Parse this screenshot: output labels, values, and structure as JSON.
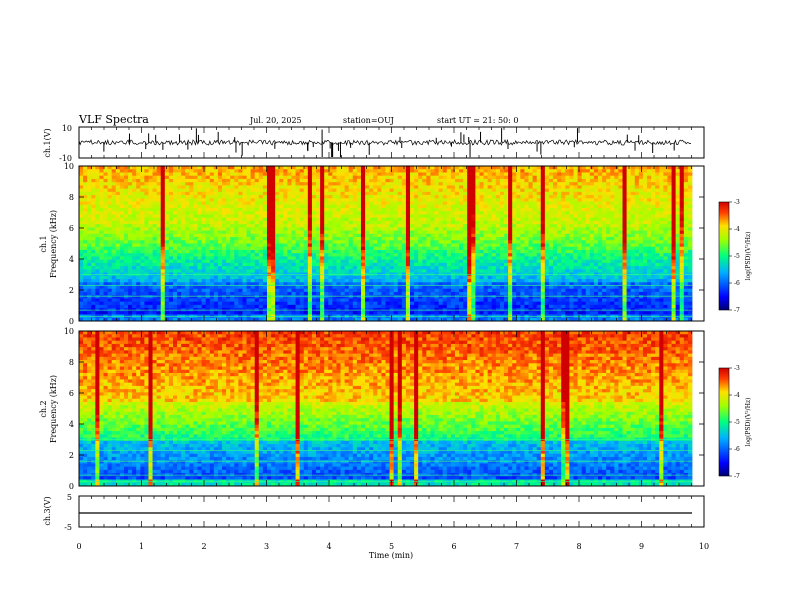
{
  "header": {
    "title": "VLF Spectra",
    "date": "Jul. 20, 2025",
    "station": "station=OUJ",
    "start": "start UT =  21: 50: 0"
  },
  "chart_data": [
    {
      "type": "line",
      "ylabel": "ch.1(V)",
      "ylim": [
        -10,
        10
      ],
      "yticks": [
        "10",
        "-10"
      ],
      "xlim": [
        0,
        10
      ]
    },
    {
      "type": "heatmap",
      "ylabel": "ch.1\nFrequency (kHz)",
      "ylim": [
        0,
        10
      ],
      "yticks": [
        "0",
        "2",
        "4",
        "6",
        "8",
        "10"
      ],
      "xlim": [
        0,
        10
      ],
      "colorbar": {
        "label": "log(PSD)(V²/Hz)",
        "range": [
          -7,
          -3
        ],
        "ticks": [
          "-3",
          "-4",
          "-5",
          "-6",
          "-7"
        ]
      }
    },
    {
      "type": "heatmap",
      "ylabel": "ch.2\nFrequency (kHz)",
      "ylim": [
        0,
        10
      ],
      "yticks": [
        "0",
        "2",
        "4",
        "6",
        "8",
        "10"
      ],
      "xlim": [
        0,
        10
      ],
      "colorbar": {
        "label": "log(PSD)(V²/Hz)",
        "range": [
          -7,
          -3
        ],
        "ticks": [
          "-3",
          "-4",
          "-5",
          "-6",
          "-7"
        ]
      }
    },
    {
      "type": "line",
      "ylabel": "ch.3(V)",
      "ylim": [
        -5,
        5
      ],
      "yticks": [
        "5",
        "-5"
      ],
      "xlim": [
        0,
        10
      ],
      "xlabel": "Time (min)",
      "xticks": [
        "0",
        "1",
        "2",
        "3",
        "4",
        "5",
        "6",
        "7",
        "8",
        "9",
        "10"
      ]
    }
  ],
  "labels": {
    "ch1v": "ch.1(V)",
    "ch1f_a": "ch.1",
    "ch1f_b": "Frequency (kHz)",
    "ch2f_a": "ch.2",
    "ch2f_b": "Frequency (kHz)",
    "ch3v": "ch.3(V)",
    "xlabel": "Time (min)",
    "cblabel": "log(PSD)(V²/Hz)"
  },
  "colors": {
    "jet": [
      "#000080",
      "#0000ff",
      "#00a0ff",
      "#00ffd0",
      "#40ff40",
      "#ffff00",
      "#ff8000",
      "#ff0000"
    ]
  }
}
